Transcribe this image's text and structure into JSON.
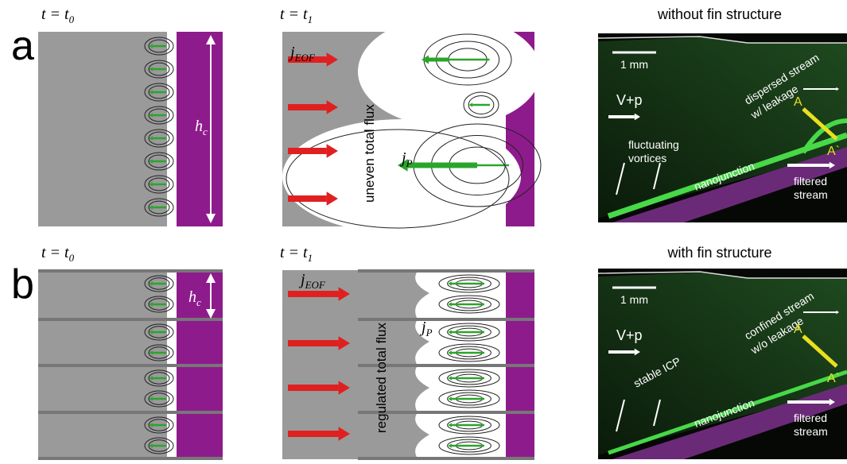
{
  "panels": [
    {
      "label": "a",
      "left_time": {
        "main": "t = t",
        "sub": "0"
      },
      "height_label": {
        "main": "h",
        "sub": "c"
      },
      "mid_time": {
        "main": "t = t",
        "sub": "1"
      },
      "jeof": {
        "main": "j",
        "sub": "EOF"
      },
      "jp": {
        "main": "j",
        "sub": "P"
      },
      "flux_label": "uneven total flux",
      "photo": {
        "title": "without fin structure",
        "scale": "1 mm",
        "input": "V+p",
        "stream_label": [
          "dispersed stream",
          "w/ leakage"
        ],
        "section": [
          "A",
          "A`"
        ],
        "vortex_label": [
          "fluctuating",
          "vortices"
        ],
        "junction": "nanojunction",
        "output": [
          "filtered",
          "stream"
        ]
      }
    },
    {
      "label": "b",
      "left_time": {
        "main": "t = t",
        "sub": "0"
      },
      "height_label": {
        "main": "h",
        "sub": "c"
      },
      "mid_time": {
        "main": "t = t",
        "sub": "1"
      },
      "jeof": {
        "main": "j",
        "sub": "EOF"
      },
      "jp": {
        "main": "j",
        "sub": "P"
      },
      "flux_label": "regulated total flux",
      "photo": {
        "title": "with fin structure",
        "scale": "1 mm",
        "input": "V+p",
        "stream_label": [
          "confined stream",
          "w/o leakage"
        ],
        "section": [
          "A",
          "A`"
        ],
        "vortex_label": [
          "stable ICP"
        ],
        "junction": "nanojunction",
        "output": [
          "filtered",
          "stream"
        ]
      }
    }
  ]
}
